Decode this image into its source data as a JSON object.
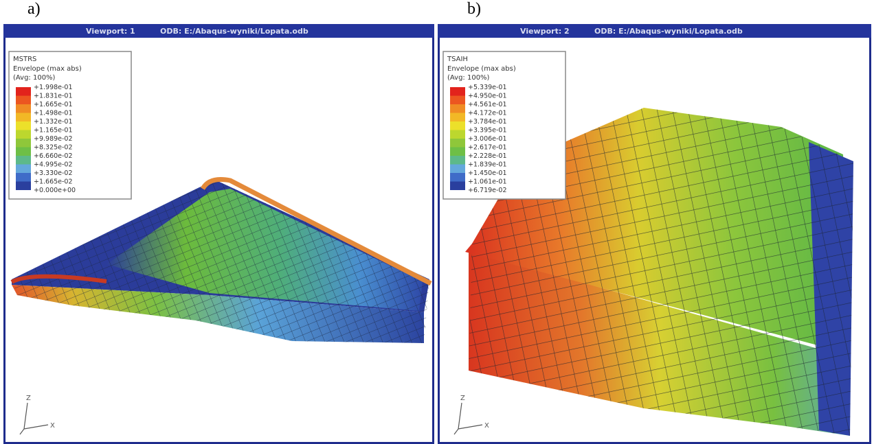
{
  "figure": {
    "panels": [
      {
        "label": "a)",
        "viewport": "Viewport: 1",
        "odb": "ODB: E:/Abaqus-wyniki/Lopata.odb",
        "legend": {
          "variable": "MSTRS",
          "lines": [
            "Envelope (max abs)",
            "(Avg: 100%)"
          ],
          "values": [
            "+1.998e-01",
            "+1.831e-01",
            "+1.665e-01",
            "+1.498e-01",
            "+1.332e-01",
            "+1.165e-01",
            "+9.989e-02",
            "+8.325e-02",
            "+6.660e-02",
            "+4.995e-02",
            "+3.330e-02",
            "+1.665e-02",
            "+0.000e+00"
          ]
        },
        "triad": [
          "Z",
          "X"
        ]
      },
      {
        "label": "b)",
        "viewport": "Viewport: 2",
        "odb": "ODB: E:/Abaqus-wyniki/Lopata.odb",
        "legend": {
          "variable": "TSAIH",
          "lines": [
            "Envelope (max abs)",
            "(Avg: 100%)"
          ],
          "values": [
            "+5.339e-01",
            "+4.950e-01",
            "+4.561e-01",
            "+4.172e-01",
            "+3.784e-01",
            "+3.395e-01",
            "+3.006e-01",
            "+2.617e-01",
            "+2.228e-01",
            "+1.839e-01",
            "+1.450e-01",
            "+1.061e-01",
            "+6.719e-02"
          ]
        },
        "triad": [
          "Z",
          "X"
        ]
      }
    ]
  }
}
